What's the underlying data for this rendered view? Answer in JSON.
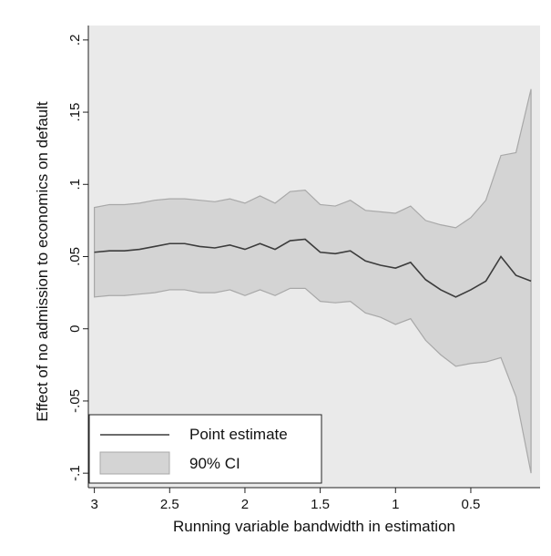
{
  "chart_data": {
    "type": "line",
    "x_label": "Running variable bandwidth in estimation",
    "y_label": "Effect of no admission to economics on default",
    "x": [
      3.0,
      2.9,
      2.8,
      2.7,
      2.6,
      2.5,
      2.4,
      2.3,
      2.2,
      2.1,
      2.0,
      1.9,
      1.8,
      1.7,
      1.6,
      1.5,
      1.4,
      1.3,
      1.2,
      1.1,
      1.0,
      0.9,
      0.8,
      0.7,
      0.6,
      0.5,
      0.4,
      0.3,
      0.2,
      0.1
    ],
    "series": [
      {
        "name": "Point estimate",
        "color": "#3c3c3c",
        "values": [
          0.053,
          0.054,
          0.054,
          0.055,
          0.057,
          0.059,
          0.059,
          0.057,
          0.056,
          0.058,
          0.055,
          0.059,
          0.055,
          0.061,
          0.062,
          0.053,
          0.052,
          0.054,
          0.047,
          0.044,
          0.042,
          0.046,
          0.034,
          0.027,
          0.022,
          0.027,
          0.033,
          0.05,
          0.037,
          0.033
        ]
      },
      {
        "name": "90% CI",
        "color": "#d4d4d4",
        "edge_color": "#a8a8a8",
        "upper": [
          0.084,
          0.086,
          0.086,
          0.087,
          0.089,
          0.09,
          0.09,
          0.089,
          0.088,
          0.09,
          0.087,
          0.092,
          0.087,
          0.095,
          0.096,
          0.086,
          0.085,
          0.089,
          0.082,
          0.081,
          0.08,
          0.085,
          0.075,
          0.072,
          0.07,
          0.077,
          0.089,
          0.12,
          0.122,
          0.166
        ],
        "lower": [
          0.022,
          0.023,
          0.023,
          0.024,
          0.025,
          0.027,
          0.027,
          0.025,
          0.025,
          0.027,
          0.023,
          0.027,
          0.023,
          0.028,
          0.028,
          0.019,
          0.018,
          0.019,
          0.011,
          0.008,
          0.003,
          0.007,
          -0.008,
          -0.018,
          -0.026,
          -0.024,
          -0.023,
          -0.02,
          -0.047,
          -0.1
        ]
      }
    ],
    "xlim": [
      3.04,
      0.04
    ],
    "xticks": [
      3,
      2.5,
      2,
      1.5,
      1,
      0.5
    ],
    "ylim": [
      -0.11,
      0.21
    ],
    "yticks": [
      {
        "value": -0.1,
        "label": "-.1"
      },
      {
        "value": -0.05,
        "label": "-.05"
      },
      0,
      {
        "value": 0.05,
        "label": ".05"
      },
      {
        "value": 0.1,
        "label": ".1"
      },
      {
        "value": 0.15,
        "label": ".15"
      },
      {
        "value": 0.2,
        "label": ".2"
      }
    ],
    "legend": "bottom-left",
    "background": "#eaeaea"
  }
}
